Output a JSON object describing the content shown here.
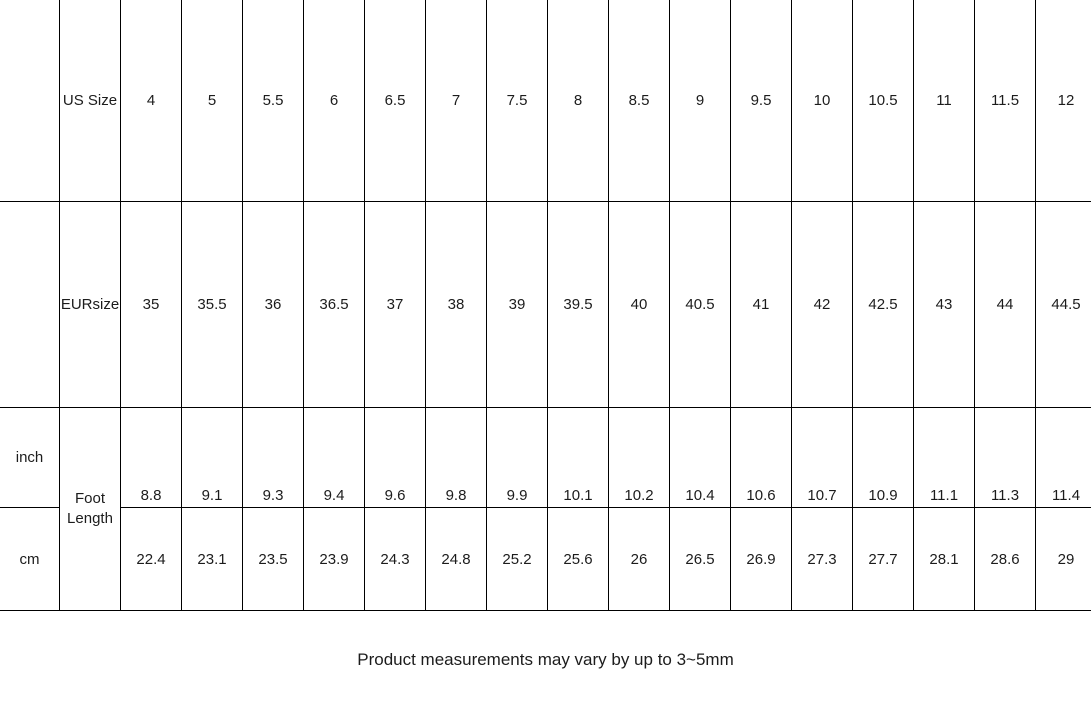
{
  "chart_data": {
    "type": "table",
    "rows": [
      {
        "label": "US Size",
        "values": [
          4,
          5,
          5.5,
          6,
          6.5,
          7,
          7.5,
          8,
          8.5,
          9,
          9.5,
          10,
          10.5,
          11,
          11.5,
          12
        ]
      },
      {
        "label": "EURsize",
        "values": [
          35,
          35.5,
          36,
          36.5,
          37,
          38,
          39,
          39.5,
          40,
          40.5,
          41,
          42,
          42.5,
          43,
          44,
          44.5
        ]
      },
      {
        "label": "Foot Length (inch)",
        "values": [
          8.8,
          9.1,
          9.3,
          9.4,
          9.6,
          9.8,
          9.9,
          10.1,
          10.2,
          10.4,
          10.6,
          10.7,
          10.9,
          11.1,
          11.3,
          11.4
        ]
      },
      {
        "label": "Foot Length (cm)",
        "values": [
          22.4,
          23.1,
          23.5,
          23.9,
          24.3,
          24.8,
          25.2,
          25.6,
          26,
          26.5,
          26.9,
          27.3,
          27.7,
          28.1,
          28.6,
          29
        ]
      }
    ],
    "note": "Product measurements may vary by up to 3~5mm"
  },
  "size_chart": {
    "corner_blank": "",
    "foot_length_label": "Foot Length",
    "rows": {
      "us": {
        "label": "US Size",
        "values": [
          "4",
          "5",
          "5.5",
          "6",
          "6.5",
          "7",
          "7.5",
          "8",
          "8.5",
          "9",
          "9.5",
          "10",
          "10.5",
          "11",
          "11.5",
          "12"
        ]
      },
      "eur": {
        "label": "EURsize",
        "values": [
          "35",
          "35.5",
          "36",
          "36.5",
          "37",
          "38",
          "39",
          "39.5",
          "40",
          "40.5",
          "41",
          "42",
          "42.5",
          "43",
          "44",
          "44.5"
        ]
      },
      "inch": {
        "unit_label": "inch",
        "values": [
          "8.8",
          "9.1",
          "9.3",
          "9.4",
          "9.6",
          "9.8",
          "9.9",
          "10.1",
          "10.2",
          "10.4",
          "10.6",
          "10.7",
          "10.9",
          "11.1",
          "11.3",
          "11.4"
        ]
      },
      "cm": {
        "unit_label": "cm",
        "values": [
          "22.4",
          "23.1",
          "23.5",
          "23.9",
          "24.3",
          "24.8",
          "25.2",
          "25.6",
          "26",
          "26.5",
          "26.9",
          "27.3",
          "27.7",
          "28.1",
          "28.6",
          "29"
        ]
      }
    }
  },
  "footer": {
    "note": "Product measurements may vary by up to 3~5mm"
  }
}
